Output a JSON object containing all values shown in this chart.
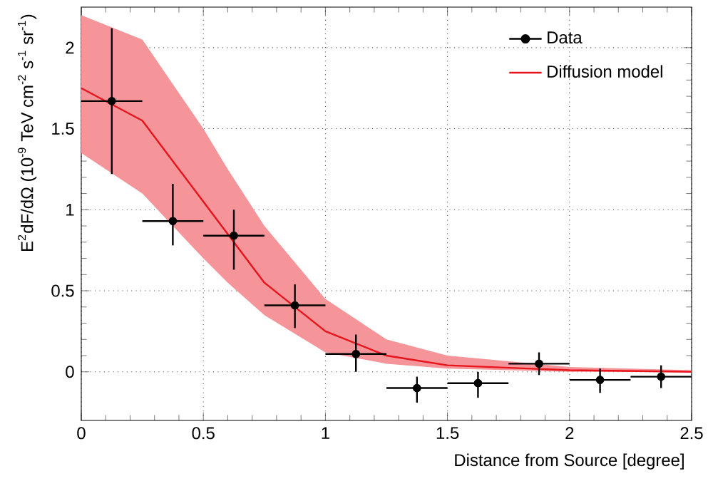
{
  "chart_data": {
    "type": "scatter",
    "xlabel": "Distance from Source [degree]",
    "ylabel": "E$^{2}$dF/dΩ (10$^{-9}$ TeV cm$^{-2}$ s$^{-1}$ sr$^{-1}$)",
    "xlim": [
      0,
      2.5
    ],
    "ylim": [
      -0.3,
      2.25
    ],
    "xticks": [
      0,
      0.5,
      1,
      1.5,
      2,
      2.5
    ],
    "yticks": [
      0,
      0.5,
      1,
      1.5,
      2
    ],
    "grid": true,
    "legend": "top right",
    "series": [
      {
        "name": "Data",
        "color": "#000000",
        "marker": "circle",
        "x": [
          0.125,
          0.375,
          0.625,
          0.875,
          1.125,
          1.375,
          1.625,
          1.875,
          2.125,
          2.375
        ],
        "values": [
          1.67,
          0.93,
          0.84,
          0.41,
          0.11,
          -0.1,
          -0.07,
          0.05,
          -0.05,
          -0.03
        ],
        "errors": [
          [
            1.22,
            2.12
          ],
          [
            0.78,
            1.16
          ],
          [
            0.63,
            1.0
          ],
          [
            0.27,
            0.54
          ],
          [
            0.0,
            0.23
          ],
          [
            -0.19,
            -0.03
          ],
          [
            -0.16,
            0.0
          ],
          [
            -0.02,
            0.12
          ],
          [
            -0.13,
            0.02
          ],
          [
            -0.1,
            0.04
          ]
        ],
        "xerrors": [
          0.125,
          0.125,
          0.125,
          0.125,
          0.125,
          0.125,
          0.125,
          0.125,
          0.125,
          0.125
        ]
      },
      {
        "name": "Diffusion model",
        "type": "line",
        "color": "#e8141c",
        "marker": "none",
        "line_style": "solid",
        "x": [
          0,
          0.25,
          0.5,
          0.6,
          0.75,
          1.0,
          1.25,
          1.5,
          2.0,
          2.5
        ],
        "values": [
          1.75,
          1.55,
          1.05,
          0.85,
          0.55,
          0.25,
          0.1,
          0.04,
          0.01,
          0.0
        ],
        "lower": [
          1.35,
          1.1,
          0.7,
          0.55,
          0.35,
          0.12,
          0.05,
          0.02,
          0.0,
          0.0
        ],
        "upper": [
          2.2,
          2.05,
          1.5,
          1.25,
          0.9,
          0.45,
          0.2,
          0.1,
          0.03,
          0.01
        ]
      }
    ]
  }
}
